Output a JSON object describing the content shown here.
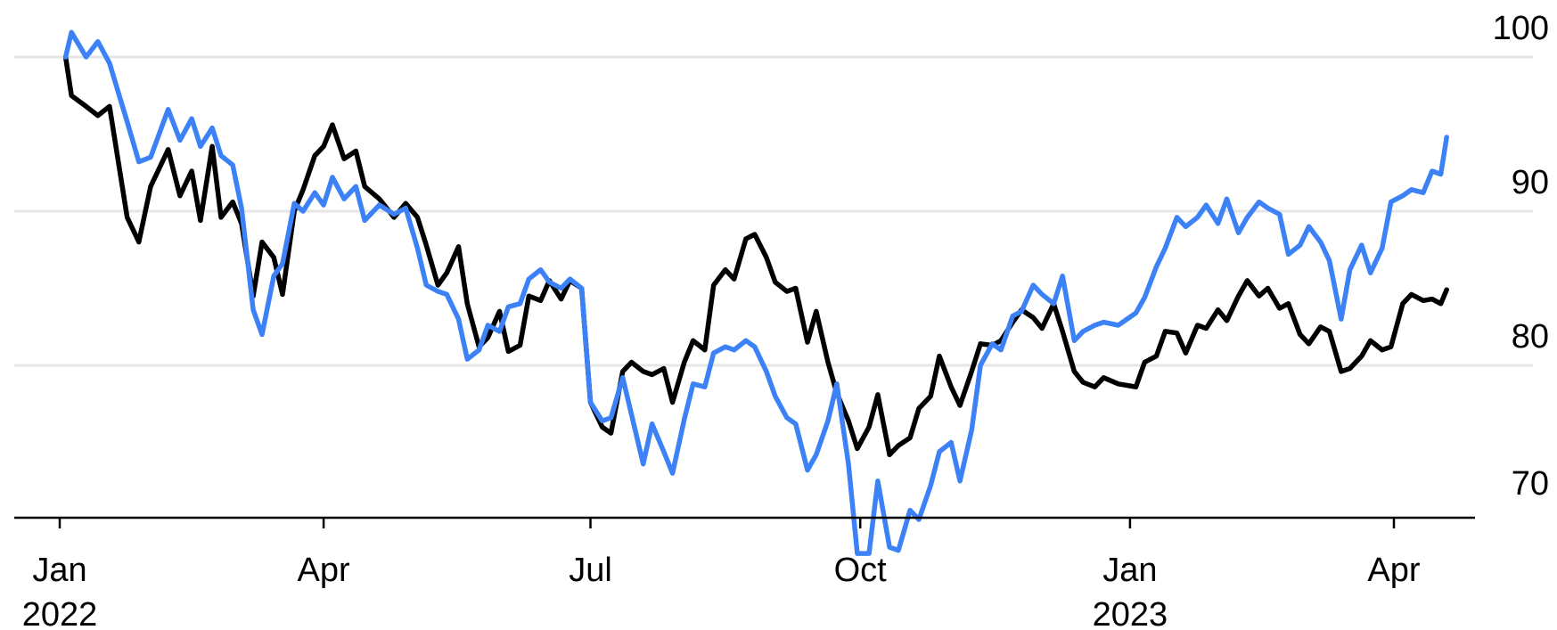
{
  "chart_data": {
    "type": "line",
    "title": "",
    "xlabel": "",
    "ylabel": "",
    "ylim": [
      68,
      101
    ],
    "y_ticks": [
      100,
      90,
      80,
      70
    ],
    "y_axis_side": "right",
    "grid": "horizontal",
    "legend": "none",
    "x_range": [
      "2022-01-01",
      "2023-05-15"
    ],
    "x_ticks": [
      {
        "date": "2022-01-01",
        "label": "Jan",
        "year": "2022"
      },
      {
        "date": "2022-04-01",
        "label": "Apr",
        "year": ""
      },
      {
        "date": "2022-07-01",
        "label": "Jul",
        "year": ""
      },
      {
        "date": "2022-10-01",
        "label": "Oct",
        "year": ""
      },
      {
        "date": "2023-01-01",
        "label": "Jan",
        "year": "2023"
      },
      {
        "date": "2023-04-01",
        "label": "Apr",
        "year": ""
      }
    ],
    "series": [
      {
        "color": "#000000",
        "points": [
          [
            "2022-01-03",
            100
          ],
          [
            "2022-01-05",
            97.5
          ],
          [
            "2022-01-10",
            96.8
          ],
          [
            "2022-01-14",
            96.2
          ],
          [
            "2022-01-18",
            96.8
          ],
          [
            "2022-01-24",
            89.6
          ],
          [
            "2022-01-28",
            88.0
          ],
          [
            "2022-02-01",
            91.6
          ],
          [
            "2022-02-07",
            94.0
          ],
          [
            "2022-02-11",
            91.0
          ],
          [
            "2022-02-15",
            92.6
          ],
          [
            "2022-02-18",
            89.4
          ],
          [
            "2022-02-22",
            94.2
          ],
          [
            "2022-02-25",
            89.6
          ],
          [
            "2022-03-01",
            90.6
          ],
          [
            "2022-03-04",
            89.2
          ],
          [
            "2022-03-08",
            84.5
          ],
          [
            "2022-03-11",
            88.0
          ],
          [
            "2022-03-15",
            87.0
          ],
          [
            "2022-03-18",
            84.6
          ],
          [
            "2022-03-22",
            90.0
          ],
          [
            "2022-03-25",
            91.4
          ],
          [
            "2022-03-29",
            93.6
          ],
          [
            "2022-04-01",
            94.2
          ],
          [
            "2022-04-04",
            95.6
          ],
          [
            "2022-04-08",
            93.4
          ],
          [
            "2022-04-12",
            93.9
          ],
          [
            "2022-04-15",
            91.6
          ],
          [
            "2022-04-20",
            90.8
          ],
          [
            "2022-04-25",
            89.6
          ],
          [
            "2022-04-29",
            90.5
          ],
          [
            "2022-05-03",
            89.6
          ],
          [
            "2022-05-06",
            87.8
          ],
          [
            "2022-05-10",
            85.2
          ],
          [
            "2022-05-13",
            86.0
          ],
          [
            "2022-05-17",
            87.7
          ],
          [
            "2022-05-20",
            84.0
          ],
          [
            "2022-05-24",
            81.2
          ],
          [
            "2022-05-27",
            81.8
          ],
          [
            "2022-05-31",
            83.5
          ],
          [
            "2022-06-03",
            80.9
          ],
          [
            "2022-06-07",
            81.3
          ],
          [
            "2022-06-10",
            84.5
          ],
          [
            "2022-06-14",
            84.2
          ],
          [
            "2022-06-17",
            85.5
          ],
          [
            "2022-06-21",
            84.3
          ],
          [
            "2022-06-24",
            85.5
          ],
          [
            "2022-06-28",
            85.0
          ],
          [
            "2022-07-01",
            77.6
          ],
          [
            "2022-07-05",
            76.0
          ],
          [
            "2022-07-08",
            75.6
          ],
          [
            "2022-07-12",
            79.6
          ],
          [
            "2022-07-15",
            80.2
          ],
          [
            "2022-07-19",
            79.6
          ],
          [
            "2022-07-22",
            79.4
          ],
          [
            "2022-07-26",
            79.8
          ],
          [
            "2022-07-29",
            77.6
          ],
          [
            "2022-08-02",
            80.2
          ],
          [
            "2022-08-05",
            81.6
          ],
          [
            "2022-08-09",
            81.0
          ],
          [
            "2022-08-12",
            85.2
          ],
          [
            "2022-08-16",
            86.2
          ],
          [
            "2022-08-19",
            85.6
          ],
          [
            "2022-08-23",
            88.2
          ],
          [
            "2022-08-26",
            88.5
          ],
          [
            "2022-08-30",
            87.0
          ],
          [
            "2022-09-02",
            85.4
          ],
          [
            "2022-09-06",
            84.8
          ],
          [
            "2022-09-09",
            85.0
          ],
          [
            "2022-09-13",
            81.5
          ],
          [
            "2022-09-16",
            83.5
          ],
          [
            "2022-09-20",
            80.2
          ],
          [
            "2022-09-23",
            78.2
          ],
          [
            "2022-09-27",
            76.4
          ],
          [
            "2022-09-30",
            74.6
          ],
          [
            "2022-10-04",
            76.0
          ],
          [
            "2022-10-07",
            78.1
          ],
          [
            "2022-10-11",
            74.2
          ],
          [
            "2022-10-14",
            74.8
          ],
          [
            "2022-10-18",
            75.3
          ],
          [
            "2022-10-21",
            77.2
          ],
          [
            "2022-10-25",
            78.0
          ],
          [
            "2022-10-28",
            80.6
          ],
          [
            "2022-11-01",
            78.6
          ],
          [
            "2022-11-04",
            77.4
          ],
          [
            "2022-11-08",
            79.6
          ],
          [
            "2022-11-11",
            81.4
          ],
          [
            "2022-11-15",
            81.3
          ],
          [
            "2022-11-18",
            81.6
          ],
          [
            "2022-11-22",
            82.8
          ],
          [
            "2022-11-25",
            83.6
          ],
          [
            "2022-11-29",
            83.1
          ],
          [
            "2022-12-02",
            82.4
          ],
          [
            "2022-12-06",
            84.0
          ],
          [
            "2022-12-09",
            82.2
          ],
          [
            "2022-12-13",
            79.6
          ],
          [
            "2022-12-16",
            78.9
          ],
          [
            "2022-12-20",
            78.6
          ],
          [
            "2022-12-23",
            79.2
          ],
          [
            "2022-12-28",
            78.8
          ],
          [
            "2023-01-03",
            78.6
          ],
          [
            "2023-01-06",
            80.2
          ],
          [
            "2023-01-10",
            80.6
          ],
          [
            "2023-01-13",
            82.2
          ],
          [
            "2023-01-17",
            82.1
          ],
          [
            "2023-01-20",
            80.8
          ],
          [
            "2023-01-24",
            82.6
          ],
          [
            "2023-01-27",
            82.4
          ],
          [
            "2023-01-31",
            83.6
          ],
          [
            "2023-02-03",
            82.9
          ],
          [
            "2023-02-07",
            84.5
          ],
          [
            "2023-02-10",
            85.5
          ],
          [
            "2023-02-14",
            84.5
          ],
          [
            "2023-02-17",
            85.0
          ],
          [
            "2023-02-21",
            83.7
          ],
          [
            "2023-02-24",
            84.0
          ],
          [
            "2023-02-28",
            82.0
          ],
          [
            "2023-03-03",
            81.4
          ],
          [
            "2023-03-07",
            82.5
          ],
          [
            "2023-03-10",
            82.2
          ],
          [
            "2023-03-14",
            79.6
          ],
          [
            "2023-03-17",
            79.8
          ],
          [
            "2023-03-21",
            80.6
          ],
          [
            "2023-03-24",
            81.6
          ],
          [
            "2023-03-28",
            81.0
          ],
          [
            "2023-03-31",
            81.2
          ],
          [
            "2023-04-04",
            84.0
          ],
          [
            "2023-04-07",
            84.6
          ],
          [
            "2023-04-11",
            84.2
          ],
          [
            "2023-04-14",
            84.3
          ],
          [
            "2023-04-17",
            84.0
          ],
          [
            "2023-04-19",
            84.9
          ]
        ]
      },
      {
        "color": "#3c82f6",
        "points": [
          [
            "2022-01-03",
            100
          ],
          [
            "2022-01-05",
            101.6
          ],
          [
            "2022-01-10",
            100.0
          ],
          [
            "2022-01-14",
            101.0
          ],
          [
            "2022-01-18",
            99.6
          ],
          [
            "2022-01-24",
            95.8
          ],
          [
            "2022-01-28",
            93.2
          ],
          [
            "2022-02-01",
            93.5
          ],
          [
            "2022-02-07",
            96.6
          ],
          [
            "2022-02-11",
            94.6
          ],
          [
            "2022-02-15",
            96.0
          ],
          [
            "2022-02-18",
            94.2
          ],
          [
            "2022-02-22",
            95.4
          ],
          [
            "2022-02-25",
            93.6
          ],
          [
            "2022-03-01",
            93.0
          ],
          [
            "2022-03-04",
            90.2
          ],
          [
            "2022-03-08",
            83.6
          ],
          [
            "2022-03-11",
            82.0
          ],
          [
            "2022-03-15",
            85.8
          ],
          [
            "2022-03-18",
            86.6
          ],
          [
            "2022-03-22",
            90.5
          ],
          [
            "2022-03-25",
            90.0
          ],
          [
            "2022-03-29",
            91.2
          ],
          [
            "2022-04-01",
            90.4
          ],
          [
            "2022-04-04",
            92.2
          ],
          [
            "2022-04-08",
            90.8
          ],
          [
            "2022-04-12",
            91.6
          ],
          [
            "2022-04-15",
            89.4
          ],
          [
            "2022-04-20",
            90.4
          ],
          [
            "2022-04-25",
            89.8
          ],
          [
            "2022-04-29",
            90.2
          ],
          [
            "2022-05-03",
            87.6
          ],
          [
            "2022-05-06",
            85.2
          ],
          [
            "2022-05-10",
            84.8
          ],
          [
            "2022-05-13",
            84.6
          ],
          [
            "2022-05-17",
            83.0
          ],
          [
            "2022-05-20",
            80.4
          ],
          [
            "2022-05-24",
            81.0
          ],
          [
            "2022-05-27",
            82.6
          ],
          [
            "2022-05-31",
            82.2
          ],
          [
            "2022-06-03",
            83.8
          ],
          [
            "2022-06-07",
            84.0
          ],
          [
            "2022-06-10",
            85.6
          ],
          [
            "2022-06-14",
            86.2
          ],
          [
            "2022-06-17",
            85.4
          ],
          [
            "2022-06-21",
            85.0
          ],
          [
            "2022-06-24",
            85.6
          ],
          [
            "2022-06-28",
            85.0
          ],
          [
            "2022-07-01",
            77.6
          ],
          [
            "2022-07-05",
            76.4
          ],
          [
            "2022-07-08",
            76.6
          ],
          [
            "2022-07-12",
            79.2
          ],
          [
            "2022-07-15",
            76.8
          ],
          [
            "2022-07-19",
            73.6
          ],
          [
            "2022-07-22",
            76.2
          ],
          [
            "2022-07-26",
            74.4
          ],
          [
            "2022-07-29",
            73.0
          ],
          [
            "2022-08-02",
            76.5
          ],
          [
            "2022-08-05",
            78.8
          ],
          [
            "2022-08-09",
            78.6
          ],
          [
            "2022-08-12",
            80.8
          ],
          [
            "2022-08-16",
            81.2
          ],
          [
            "2022-08-19",
            81.0
          ],
          [
            "2022-08-23",
            81.6
          ],
          [
            "2022-08-26",
            81.2
          ],
          [
            "2022-08-30",
            79.6
          ],
          [
            "2022-09-02",
            78.0
          ],
          [
            "2022-09-06",
            76.6
          ],
          [
            "2022-09-09",
            76.2
          ],
          [
            "2022-09-13",
            73.2
          ],
          [
            "2022-09-16",
            74.2
          ],
          [
            "2022-09-20",
            76.4
          ],
          [
            "2022-09-23",
            78.8
          ],
          [
            "2022-09-27",
            73.6
          ],
          [
            "2022-09-30",
            67.8
          ],
          [
            "2022-10-04",
            67.8
          ],
          [
            "2022-10-07",
            72.5
          ],
          [
            "2022-10-11",
            68.2
          ],
          [
            "2022-10-14",
            68.0
          ],
          [
            "2022-10-18",
            70.6
          ],
          [
            "2022-10-21",
            70.0
          ],
          [
            "2022-10-25",
            72.2
          ],
          [
            "2022-10-28",
            74.4
          ],
          [
            "2022-11-01",
            75.0
          ],
          [
            "2022-11-04",
            72.5
          ],
          [
            "2022-11-08",
            75.8
          ],
          [
            "2022-11-11",
            80.0
          ],
          [
            "2022-11-15",
            81.4
          ],
          [
            "2022-11-18",
            81.0
          ],
          [
            "2022-11-22",
            83.2
          ],
          [
            "2022-11-25",
            83.5
          ],
          [
            "2022-11-29",
            85.2
          ],
          [
            "2022-12-02",
            84.6
          ],
          [
            "2022-12-06",
            84.0
          ],
          [
            "2022-12-09",
            85.8
          ],
          [
            "2022-12-13",
            81.6
          ],
          [
            "2022-12-16",
            82.2
          ],
          [
            "2022-12-20",
            82.6
          ],
          [
            "2022-12-23",
            82.8
          ],
          [
            "2022-12-28",
            82.6
          ],
          [
            "2023-01-03",
            83.4
          ],
          [
            "2023-01-06",
            84.4
          ],
          [
            "2023-01-10",
            86.4
          ],
          [
            "2023-01-13",
            87.6
          ],
          [
            "2023-01-17",
            89.6
          ],
          [
            "2023-01-20",
            89.0
          ],
          [
            "2023-01-24",
            89.6
          ],
          [
            "2023-01-27",
            90.4
          ],
          [
            "2023-01-31",
            89.2
          ],
          [
            "2023-02-03",
            90.8
          ],
          [
            "2023-02-07",
            88.6
          ],
          [
            "2023-02-10",
            89.6
          ],
          [
            "2023-02-14",
            90.6
          ],
          [
            "2023-02-17",
            90.2
          ],
          [
            "2023-02-21",
            89.8
          ],
          [
            "2023-02-24",
            87.2
          ],
          [
            "2023-02-28",
            87.8
          ],
          [
            "2023-03-03",
            89.0
          ],
          [
            "2023-03-07",
            88.0
          ],
          [
            "2023-03-10",
            86.8
          ],
          [
            "2023-03-14",
            83.0
          ],
          [
            "2023-03-17",
            86.2
          ],
          [
            "2023-03-21",
            87.8
          ],
          [
            "2023-03-24",
            86.0
          ],
          [
            "2023-03-28",
            87.6
          ],
          [
            "2023-03-31",
            90.6
          ],
          [
            "2023-04-04",
            91.0
          ],
          [
            "2023-04-07",
            91.4
          ],
          [
            "2023-04-11",
            91.2
          ],
          [
            "2023-04-14",
            92.6
          ],
          [
            "2023-04-17",
            92.4
          ],
          [
            "2023-04-19",
            94.8
          ]
        ]
      }
    ]
  }
}
